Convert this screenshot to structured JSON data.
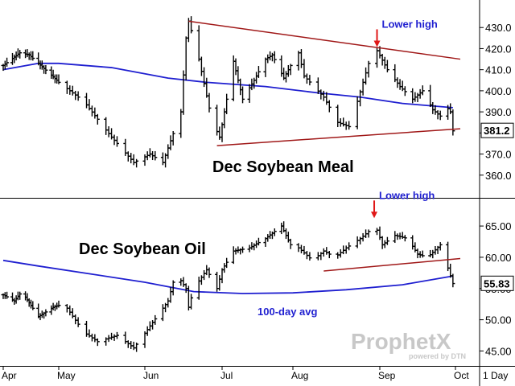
{
  "colors": {
    "price_bars": "#000000",
    "moving_average": "#1f1fd0",
    "trendline": "#a01818",
    "annotation_text": "#1f1fd0",
    "annotation_arrow": "#e01818",
    "last_value_box": "#000000",
    "watermark": "#c8c8c8"
  },
  "x_axis": {
    "ticks": [
      "Apr",
      "May",
      "Jun",
      "Jul",
      "Aug",
      "Sep",
      "Oct"
    ],
    "interval": "1 Day"
  },
  "watermark": {
    "logo_text": "ProphetX",
    "sub_text": "powered by DTN"
  },
  "chart_data": [
    {
      "type": "ohlc-bar",
      "title": "Dec Soybean Meal",
      "ylim": [
        350,
        440
      ],
      "y_ticks": [
        "430.0",
        "420.0",
        "410.0",
        "400.0",
        "390.0",
        "380.0",
        "370.0",
        "360.0"
      ],
      "last_value": "381.2",
      "close_anchors": [
        {
          "date": "Apr 1",
          "close": 412
        },
        {
          "date": "Apr 10",
          "close": 418
        },
        {
          "date": "Apr 15",
          "close": 417
        },
        {
          "date": "Apr 30",
          "close": 405
        },
        {
          "date": "May 10",
          "close": 395
        },
        {
          "date": "May 20",
          "close": 378
        },
        {
          "date": "May 28",
          "close": 366
        },
        {
          "date": "Jun 3",
          "close": 370
        },
        {
          "date": "Jun 8",
          "close": 366
        },
        {
          "date": "Jun 15",
          "close": 390
        },
        {
          "date": "Jun 17",
          "close": 425
        },
        {
          "date": "Jun 18",
          "close": 433
        },
        {
          "date": "Jun 22",
          "close": 415
        },
        {
          "date": "Jun 27",
          "close": 386
        },
        {
          "date": "Jun 30",
          "close": 378
        },
        {
          "date": "Jul 2",
          "close": 390
        },
        {
          "date": "Jul 6",
          "close": 414
        },
        {
          "date": "Jul 10",
          "close": 396
        },
        {
          "date": "Jul 15",
          "close": 405
        },
        {
          "date": "Jul 20",
          "close": 415
        },
        {
          "date": "Jul 23",
          "close": 417
        },
        {
          "date": "Jul 28",
          "close": 406
        },
        {
          "date": "Aug 3",
          "close": 418
        },
        {
          "date": "Aug 5",
          "close": 407
        },
        {
          "date": "Aug 12",
          "close": 397
        },
        {
          "date": "Aug 17",
          "close": 385
        },
        {
          "date": "Aug 21",
          "close": 383
        },
        {
          "date": "Aug 24",
          "close": 395
        },
        {
          "date": "Aug 28",
          "close": 413
        },
        {
          "date": "Aug 31",
          "close": 419
        },
        {
          "date": "Sep 4",
          "close": 410
        },
        {
          "date": "Sep 9",
          "close": 402
        },
        {
          "date": "Sep 14",
          "close": 396
        },
        {
          "date": "Sep 18",
          "close": 400
        },
        {
          "date": "Sep 22",
          "close": 391
        },
        {
          "date": "Sep 25",
          "close": 388
        },
        {
          "date": "Sep 27",
          "close": 393
        },
        {
          "date": "Sep 29",
          "close": 390
        },
        {
          "date": "Sep 30",
          "close": 381
        }
      ],
      "moving_average": {
        "name": "",
        "points": [
          {
            "date": "Apr 1",
            "value": 410
          },
          {
            "date": "Apr 20",
            "value": 413
          },
          {
            "date": "May 1",
            "value": 413
          },
          {
            "date": "May 20",
            "value": 411
          },
          {
            "date": "Jun 10",
            "value": 406
          },
          {
            "date": "Jun 25",
            "value": 404
          },
          {
            "date": "Jul 20",
            "value": 402
          },
          {
            "date": "Aug 10",
            "value": 399
          },
          {
            "date": "Aug 25",
            "value": 397
          },
          {
            "date": "Sep 10",
            "value": 394
          },
          {
            "date": "Sep 30",
            "value": 392
          }
        ]
      },
      "trendlines": [
        {
          "start": {
            "date": "Jun 18",
            "value": 433
          },
          "end": {
            "date": "Oct 3",
            "value": 415
          }
        },
        {
          "start": {
            "date": "Jun 29",
            "value": 374
          },
          "end": {
            "date": "Oct 3",
            "value": 382
          }
        }
      ],
      "annotations": [
        {
          "text": "Lower high",
          "date": "Aug 31",
          "value": 420
        }
      ]
    },
    {
      "type": "ohlc-bar",
      "title": "Dec Soybean Oil",
      "ylim": [
        43,
        69
      ],
      "y_ticks": [
        "65.00",
        "60.00",
        "55.00",
        "50.00",
        "45.00"
      ],
      "last_value": "55.83",
      "close_anchors": [
        {
          "date": "Apr 1",
          "close": 54
        },
        {
          "date": "Apr 7",
          "close": 53
        },
        {
          "date": "Apr 11",
          "close": 54.5
        },
        {
          "date": "Apr 20",
          "close": 50.5
        },
        {
          "date": "Apr 28",
          "close": 52
        },
        {
          "date": "May 3",
          "close": 52.5
        },
        {
          "date": "May 10",
          "close": 48
        },
        {
          "date": "May 15",
          "close": 46.5
        },
        {
          "date": "May 22",
          "close": 47.5
        },
        {
          "date": "May 28",
          "close": 45.5
        },
        {
          "date": "Jun 3",
          "close": 49
        },
        {
          "date": "Jun 10",
          "close": 53
        },
        {
          "date": "Jun 13",
          "close": 57.5
        },
        {
          "date": "Jun 17",
          "close": 55
        },
        {
          "date": "Jun 18",
          "close": 52
        },
        {
          "date": "Jun 20",
          "close": 55
        },
        {
          "date": "Jun 25",
          "close": 58
        },
        {
          "date": "Jun 29",
          "close": 55
        },
        {
          "date": "Jul 1",
          "close": 58
        },
        {
          "date": "Jul 6",
          "close": 61
        },
        {
          "date": "Jul 13",
          "close": 61.5
        },
        {
          "date": "Jul 20",
          "close": 63
        },
        {
          "date": "Jul 27",
          "close": 65
        },
        {
          "date": "Jul 31",
          "close": 62
        },
        {
          "date": "Aug 3",
          "close": 61.5
        },
        {
          "date": "Aug 8",
          "close": 59.5
        },
        {
          "date": "Aug 12",
          "close": 61
        },
        {
          "date": "Aug 16",
          "close": 60
        },
        {
          "date": "Aug 20",
          "close": 61.5
        },
        {
          "date": "Aug 25",
          "close": 63
        },
        {
          "date": "Aug 29",
          "close": 64.5
        },
        {
          "date": "Aug 30",
          "close": 65.5
        },
        {
          "date": "Sep 2",
          "close": 62
        },
        {
          "date": "Sep 7",
          "close": 63.5
        },
        {
          "date": "Sep 12",
          "close": 63
        },
        {
          "date": "Sep 16",
          "close": 60.5
        },
        {
          "date": "Sep 20",
          "close": 60
        },
        {
          "date": "Sep 25",
          "close": 62
        },
        {
          "date": "Sep 27",
          "close": 59.5
        },
        {
          "date": "Sep 30",
          "close": 55.8
        }
      ],
      "moving_average": {
        "name": "100-day avg",
        "points": [
          {
            "date": "Apr 1",
            "value": 59.5
          },
          {
            "date": "Apr 20",
            "value": 58.6
          },
          {
            "date": "May 10",
            "value": 57.5
          },
          {
            "date": "Jun 1",
            "value": 56
          },
          {
            "date": "Jun 20",
            "value": 54.5
          },
          {
            "date": "Jul 10",
            "value": 54.2
          },
          {
            "date": "Aug 1",
            "value": 54.3
          },
          {
            "date": "Aug 20",
            "value": 54.8
          },
          {
            "date": "Sep 10",
            "value": 55.6
          },
          {
            "date": "Sep 30",
            "value": 57
          }
        ]
      },
      "trendlines": [
        {
          "start": {
            "date": "Aug 12",
            "value": 57.8
          },
          "end": {
            "date": "Oct 3",
            "value": 59.8
          }
        }
      ],
      "annotations": [
        {
          "text": "Lower high",
          "date": "Aug 30",
          "value": 66
        }
      ]
    }
  ]
}
